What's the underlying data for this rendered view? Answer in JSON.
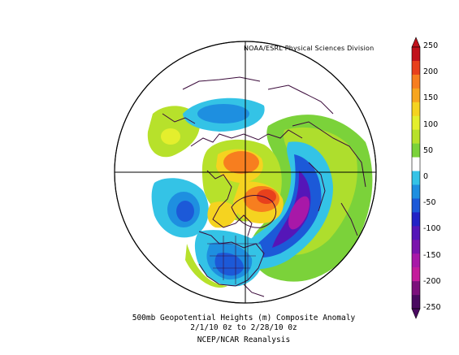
{
  "map": {
    "credit": "NOAA/ESRL Physical Sciences Division",
    "caption_line1": "500mb Geopotential Heights (m)   Composite Anomaly",
    "caption_line2": "2/1/10 0z  to 2/28/10 0z",
    "caption_line3": "NCEP/NCAR Reanalysis"
  },
  "colorbar": {
    "labels": [
      "250",
      "200",
      "150",
      "100",
      "50",
      "0",
      "-50",
      "-100",
      "-150",
      "-200",
      "-250"
    ],
    "colors": [
      "#c1121c",
      "#e8401c",
      "#f77e1f",
      "#f7a51e",
      "#f5d320",
      "#e4ef2d",
      "#b7e12b",
      "#7bd23a",
      "#ffffff",
      "#34c3e6",
      "#1e8fe0",
      "#1c59d8",
      "#2222c6",
      "#5516b8",
      "#7a14ac",
      "#a818a8",
      "#c41c9c",
      "#7c107c",
      "#4a0a60"
    ]
  }
}
